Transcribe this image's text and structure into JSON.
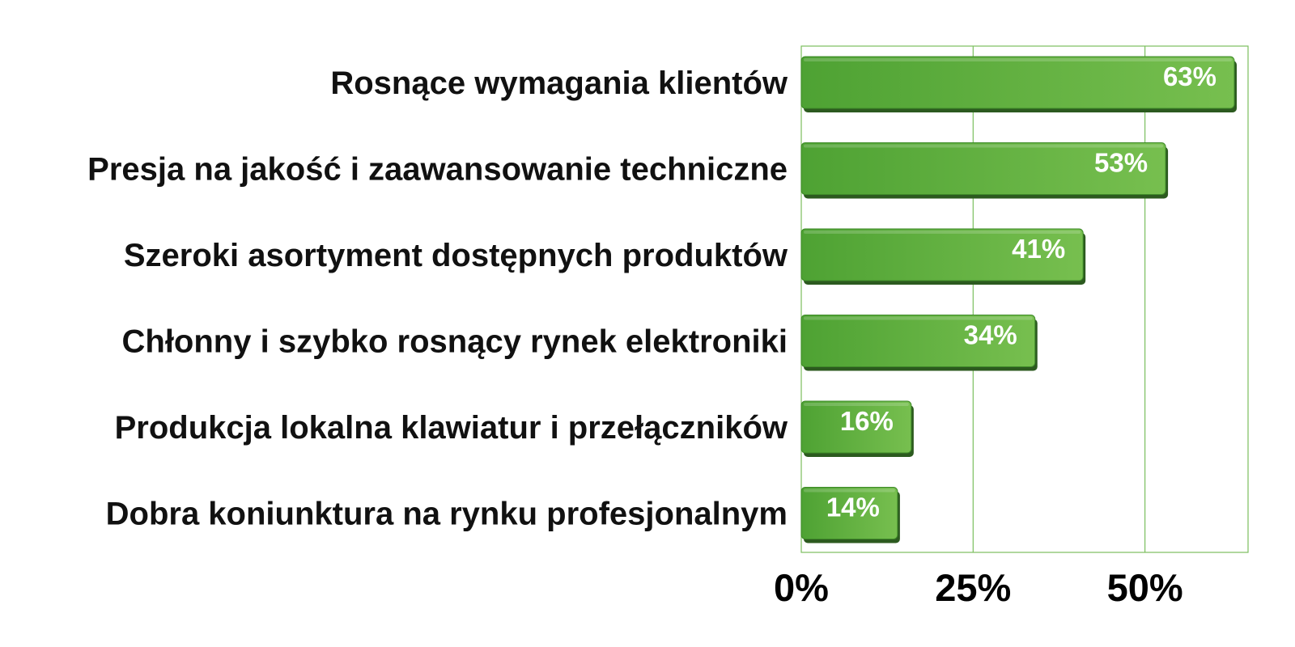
{
  "chart_data": {
    "type": "bar",
    "orientation": "horizontal",
    "categories": [
      "Rosnące wymagania klientów",
      "Presja na jakość i zaawansowanie techniczne",
      "Szeroki asortyment dostępnych produktów",
      "Chłonny i szybko rosnący rynek elektroniki",
      "Produkcja lokalna klawiatur i przełączników",
      "Dobra koniunktura na rynku profesjonalnym"
    ],
    "values": [
      63,
      53,
      41,
      34,
      16,
      14
    ],
    "value_labels": [
      "63%",
      "53%",
      "41%",
      "34%",
      "16%",
      "14%"
    ],
    "xticks": [
      0,
      25,
      50
    ],
    "xtick_labels": [
      "0%",
      "25%",
      "50%"
    ],
    "xlim": [
      0,
      65
    ],
    "grid": true,
    "bar_color": "#5aae3e",
    "bar_shadow_color": "#2c5a1f",
    "grid_color": "#7bbf5e",
    "title": "",
    "xlabel": "",
    "ylabel": ""
  }
}
